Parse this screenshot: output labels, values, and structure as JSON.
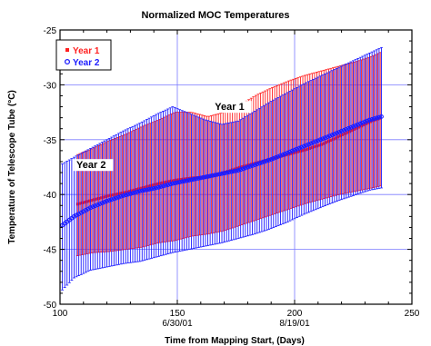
{
  "chart_data": {
    "type": "scatter",
    "title": "Normalized MOC Temperatures",
    "xlabel": "Time from Mapping Start, (Days)",
    "ylabel": "Temperature of Telescope Tube (°C)",
    "xlim": [
      100,
      250
    ],
    "ylim": [
      -50,
      -25
    ],
    "x_ticks": [
      "100",
      "150",
      "200",
      "250"
    ],
    "y_ticks": [
      "-25",
      "-30",
      "-35",
      "-40",
      "-45",
      "-50"
    ],
    "date_ticks": [
      {
        "x": 150,
        "label": "6/30/01"
      },
      {
        "x": 200,
        "label": "8/19/01"
      }
    ],
    "grid": true,
    "legend_position": "top-left",
    "annotations": [
      {
        "text": "Year 1",
        "x": 166,
        "y": -32.3
      },
      {
        "text": "Year 2",
        "x": 107,
        "y": -37.6
      }
    ],
    "series": [
      {
        "name": "Year 1",
        "color": "#ff2020",
        "marker": "square",
        "x": [
          107,
          114,
          121,
          128,
          135,
          142,
          149,
          156,
          163,
          170,
          177,
          184,
          191,
          198,
          205,
          212,
          219,
          226,
          233,
          237
        ],
        "mean": [
          -40.9,
          -40.5,
          -40.1,
          -39.8,
          -39.4,
          -39.0,
          -38.7,
          -38.5,
          -38.4,
          -38.0,
          -37.5,
          -37.1,
          -36.7,
          -36.3,
          -35.9,
          -35.4,
          -34.7,
          -34.0,
          -33.3,
          -33.0
        ],
        "high": [
          -36.4,
          -35.8,
          -35.1,
          -34.5,
          -33.8,
          -33.2,
          -32.5,
          -32.5,
          -32.9,
          -32.5,
          -31.8,
          -30.9,
          -30.2,
          -29.6,
          -29.1,
          -28.7,
          -28.3,
          -27.9,
          -27.4,
          -27.0
        ],
        "low": [
          -45.6,
          -45.3,
          -45.2,
          -45.0,
          -44.8,
          -44.4,
          -44.2,
          -43.8,
          -43.6,
          -43.3,
          -42.8,
          -42.3,
          -41.8,
          -41.3,
          -40.8,
          -40.4,
          -40.0,
          -39.7,
          -39.4,
          -39.2
        ]
      },
      {
        "name": "Year 2",
        "color": "#1c1cff",
        "marker": "circle",
        "x": [
          101,
          106,
          113,
          120,
          127,
          134,
          141,
          148,
          155,
          162,
          169,
          176,
          183,
          190,
          197,
          204,
          211,
          218,
          225,
          232,
          237
        ],
        "mean": [
          -42.8,
          -42.0,
          -41.2,
          -40.6,
          -40.1,
          -39.7,
          -39.4,
          -39.0,
          -38.7,
          -38.4,
          -38.1,
          -37.8,
          -37.3,
          -36.8,
          -36.2,
          -35.6,
          -35.0,
          -34.4,
          -33.8,
          -33.2,
          -32.9
        ],
        "high": [
          -37.2,
          -36.6,
          -35.8,
          -35.0,
          -34.2,
          -33.5,
          -32.7,
          -32.0,
          -32.6,
          -33.2,
          -33.6,
          -33.3,
          -32.4,
          -31.5,
          -30.7,
          -29.9,
          -29.2,
          -28.5,
          -27.8,
          -27.1,
          -26.6
        ],
        "low": [
          -48.7,
          -47.6,
          -46.9,
          -46.6,
          -46.3,
          -46.1,
          -45.7,
          -45.3,
          -45.0,
          -44.7,
          -44.4,
          -44.0,
          -43.6,
          -43.1,
          -42.5,
          -41.8,
          -41.2,
          -40.6,
          -40.1,
          -39.6,
          -39.4
        ]
      }
    ]
  }
}
